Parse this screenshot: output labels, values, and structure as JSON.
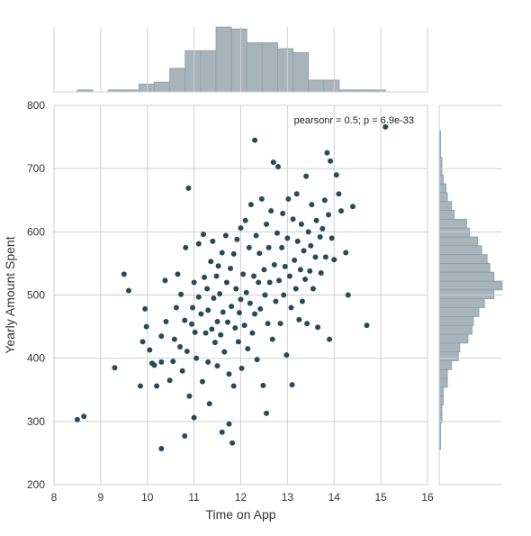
{
  "chart_data": {
    "type": "scatter",
    "title": "",
    "xlabel": "Time on App",
    "ylabel": "Yearly Amount Spent",
    "xlim": [
      8,
      16
    ],
    "ylim": [
      200,
      800
    ],
    "xticks": [
      "8",
      "9",
      "10",
      "11",
      "12",
      "13",
      "14",
      "15",
      "16"
    ],
    "yticks": [
      "200",
      "300",
      "400",
      "500",
      "600",
      "700",
      "800"
    ],
    "grid": true,
    "annotation": "pearsonr = 0.5; p = 6.9e-33",
    "colors": {
      "points": "#2a4a58",
      "hist_fill": "#a7b5bb",
      "hist_edge": "#8c9ca3",
      "grid": "#d0d0d0",
      "frame": "#cfcfcf"
    },
    "x_hist": {
      "bin_edges": [
        8.5,
        8.83,
        9.16,
        9.49,
        9.82,
        10.15,
        10.48,
        10.81,
        11.14,
        11.47,
        11.8,
        12.13,
        12.46,
        12.79,
        13.12,
        13.45,
        13.78,
        14.11,
        14.44,
        14.77,
        15.1
      ],
      "counts": [
        1,
        0,
        1,
        1,
        4,
        5,
        12,
        21,
        21,
        33,
        32,
        25,
        25,
        22,
        20,
        6,
        6,
        1,
        1,
        1
      ]
    },
    "y_hist": {
      "bin_edges": [
        256,
        270,
        284,
        298,
        312,
        326,
        340,
        354,
        368,
        382,
        396,
        410,
        424,
        438,
        452,
        466,
        480,
        494,
        508,
        522,
        536,
        550,
        564,
        578,
        592,
        606,
        620,
        634,
        648,
        662,
        676,
        690,
        704,
        718,
        732,
        746,
        760
      ],
      "counts": [
        1,
        1,
        1,
        2,
        2,
        3,
        3,
        6,
        6,
        9,
        14,
        15,
        21,
        24,
        25,
        29,
        33,
        40,
        46,
        40,
        37,
        35,
        31,
        28,
        22,
        20,
        11,
        9,
        6,
        5,
        3,
        2,
        2,
        1,
        1,
        1
      ]
    },
    "points": [
      {
        "x": 8.5,
        "y": 303
      },
      {
        "x": 8.64,
        "y": 308
      },
      {
        "x": 9.3,
        "y": 385
      },
      {
        "x": 9.5,
        "y": 533
      },
      {
        "x": 9.6,
        "y": 507
      },
      {
        "x": 9.85,
        "y": 356
      },
      {
        "x": 9.9,
        "y": 426
      },
      {
        "x": 9.95,
        "y": 478
      },
      {
        "x": 9.98,
        "y": 450
      },
      {
        "x": 10.05,
        "y": 413
      },
      {
        "x": 10.1,
        "y": 392
      },
      {
        "x": 10.15,
        "y": 389
      },
      {
        "x": 10.3,
        "y": 257
      },
      {
        "x": 10.3,
        "y": 435
      },
      {
        "x": 10.2,
        "y": 356
      },
      {
        "x": 10.3,
        "y": 394
      },
      {
        "x": 10.38,
        "y": 523
      },
      {
        "x": 10.4,
        "y": 458
      },
      {
        "x": 10.48,
        "y": 365
      },
      {
        "x": 10.55,
        "y": 395
      },
      {
        "x": 10.58,
        "y": 430
      },
      {
        "x": 10.62,
        "y": 480
      },
      {
        "x": 10.65,
        "y": 533
      },
      {
        "x": 10.7,
        "y": 418
      },
      {
        "x": 10.72,
        "y": 501
      },
      {
        "x": 10.75,
        "y": 380
      },
      {
        "x": 10.8,
        "y": 277
      },
      {
        "x": 10.8,
        "y": 460
      },
      {
        "x": 10.82,
        "y": 575
      },
      {
        "x": 10.85,
        "y": 411
      },
      {
        "x": 10.88,
        "y": 669
      },
      {
        "x": 10.9,
        "y": 340
      },
      {
        "x": 10.95,
        "y": 454
      },
      {
        "x": 10.97,
        "y": 480
      },
      {
        "x": 11.0,
        "y": 306
      },
      {
        "x": 11.0,
        "y": 520
      },
      {
        "x": 11.02,
        "y": 441
      },
      {
        "x": 11.05,
        "y": 400
      },
      {
        "x": 11.1,
        "y": 581
      },
      {
        "x": 11.1,
        "y": 497
      },
      {
        "x": 11.15,
        "y": 470
      },
      {
        "x": 11.18,
        "y": 363
      },
      {
        "x": 11.2,
        "y": 596
      },
      {
        "x": 11.22,
        "y": 528
      },
      {
        "x": 11.25,
        "y": 440
      },
      {
        "x": 11.28,
        "y": 510
      },
      {
        "x": 11.3,
        "y": 394
      },
      {
        "x": 11.3,
        "y": 476
      },
      {
        "x": 11.33,
        "y": 328
      },
      {
        "x": 11.36,
        "y": 553
      },
      {
        "x": 11.38,
        "y": 446
      },
      {
        "x": 11.4,
        "y": 585
      },
      {
        "x": 11.42,
        "y": 495
      },
      {
        "x": 11.45,
        "y": 425
      },
      {
        "x": 11.48,
        "y": 530
      },
      {
        "x": 11.5,
        "y": 458
      },
      {
        "x": 11.5,
        "y": 388
      },
      {
        "x": 11.52,
        "y": 546
      },
      {
        "x": 11.55,
        "y": 502
      },
      {
        "x": 11.57,
        "y": 437
      },
      {
        "x": 11.6,
        "y": 567
      },
      {
        "x": 11.6,
        "y": 283
      },
      {
        "x": 11.62,
        "y": 473
      },
      {
        "x": 11.65,
        "y": 410
      },
      {
        "x": 11.68,
        "y": 594
      },
      {
        "x": 11.7,
        "y": 520
      },
      {
        "x": 11.72,
        "y": 457
      },
      {
        "x": 11.75,
        "y": 296
      },
      {
        "x": 11.75,
        "y": 375
      },
      {
        "x": 11.78,
        "y": 542
      },
      {
        "x": 11.8,
        "y": 482
      },
      {
        "x": 11.82,
        "y": 266
      },
      {
        "x": 11.85,
        "y": 356
      },
      {
        "x": 11.85,
        "y": 565
      },
      {
        "x": 11.88,
        "y": 448
      },
      {
        "x": 11.9,
        "y": 510
      },
      {
        "x": 11.92,
        "y": 588
      },
      {
        "x": 11.95,
        "y": 426
      },
      {
        "x": 11.97,
        "y": 472
      },
      {
        "x": 12.0,
        "y": 606
      },
      {
        "x": 12.0,
        "y": 493
      },
      {
        "x": 12.02,
        "y": 384
      },
      {
        "x": 12.05,
        "y": 533
      },
      {
        "x": 12.08,
        "y": 452
      },
      {
        "x": 12.1,
        "y": 618
      },
      {
        "x": 12.12,
        "y": 504
      },
      {
        "x": 12.15,
        "y": 415
      },
      {
        "x": 12.18,
        "y": 575
      },
      {
        "x": 12.2,
        "y": 487
      },
      {
        "x": 12.22,
        "y": 643
      },
      {
        "x": 12.25,
        "y": 440
      },
      {
        "x": 12.28,
        "y": 530
      },
      {
        "x": 12.3,
        "y": 745
      },
      {
        "x": 12.3,
        "y": 470
      },
      {
        "x": 12.33,
        "y": 594
      },
      {
        "x": 12.35,
        "y": 398
      },
      {
        "x": 12.38,
        "y": 520
      },
      {
        "x": 12.4,
        "y": 566
      },
      {
        "x": 12.42,
        "y": 478
      },
      {
        "x": 12.45,
        "y": 652
      },
      {
        "x": 12.48,
        "y": 357
      },
      {
        "x": 12.5,
        "y": 540
      },
      {
        "x": 12.52,
        "y": 500
      },
      {
        "x": 12.55,
        "y": 313
      },
      {
        "x": 12.55,
        "y": 612
      },
      {
        "x": 12.58,
        "y": 455
      },
      {
        "x": 12.6,
        "y": 575
      },
      {
        "x": 12.62,
        "y": 520
      },
      {
        "x": 12.65,
        "y": 633
      },
      {
        "x": 12.68,
        "y": 430
      },
      {
        "x": 12.7,
        "y": 710
      },
      {
        "x": 12.72,
        "y": 548
      },
      {
        "x": 12.75,
        "y": 490
      },
      {
        "x": 12.78,
        "y": 598
      },
      {
        "x": 12.8,
        "y": 703
      },
      {
        "x": 12.82,
        "y": 523
      },
      {
        "x": 12.85,
        "y": 455
      },
      {
        "x": 12.88,
        "y": 575
      },
      {
        "x": 12.9,
        "y": 629
      },
      {
        "x": 12.92,
        "y": 500
      },
      {
        "x": 12.95,
        "y": 545
      },
      {
        "x": 12.98,
        "y": 405
      },
      {
        "x": 13.0,
        "y": 590
      },
      {
        "x": 13.02,
        "y": 652
      },
      {
        "x": 13.05,
        "y": 530
      },
      {
        "x": 13.08,
        "y": 480
      },
      {
        "x": 13.1,
        "y": 358
      },
      {
        "x": 13.12,
        "y": 620
      },
      {
        "x": 13.15,
        "y": 555
      },
      {
        "x": 13.18,
        "y": 510
      },
      {
        "x": 13.2,
        "y": 660
      },
      {
        "x": 13.22,
        "y": 585
      },
      {
        "x": 13.25,
        "y": 461
      },
      {
        "x": 13.28,
        "y": 540
      },
      {
        "x": 13.3,
        "y": 612
      },
      {
        "x": 13.32,
        "y": 490
      },
      {
        "x": 13.35,
        "y": 570
      },
      {
        "x": 13.38,
        "y": 525
      },
      {
        "x": 13.4,
        "y": 688
      },
      {
        "x": 13.42,
        "y": 455
      },
      {
        "x": 13.45,
        "y": 600
      },
      {
        "x": 13.48,
        "y": 538
      },
      {
        "x": 13.5,
        "y": 578
      },
      {
        "x": 13.52,
        "y": 643
      },
      {
        "x": 13.55,
        "y": 510
      },
      {
        "x": 13.6,
        "y": 560
      },
      {
        "x": 13.62,
        "y": 618
      },
      {
        "x": 13.65,
        "y": 449
      },
      {
        "x": 13.7,
        "y": 592
      },
      {
        "x": 13.72,
        "y": 535
      },
      {
        "x": 13.75,
        "y": 605
      },
      {
        "x": 13.8,
        "y": 650
      },
      {
        "x": 13.82,
        "y": 560
      },
      {
        "x": 13.85,
        "y": 725
      },
      {
        "x": 13.88,
        "y": 627
      },
      {
        "x": 13.9,
        "y": 430
      },
      {
        "x": 13.92,
        "y": 712
      },
      {
        "x": 13.95,
        "y": 590
      },
      {
        "x": 14.0,
        "y": 556
      },
      {
        "x": 14.05,
        "y": 690
      },
      {
        "x": 14.1,
        "y": 660
      },
      {
        "x": 14.15,
        "y": 633
      },
      {
        "x": 14.25,
        "y": 567
      },
      {
        "x": 14.3,
        "y": 500
      },
      {
        "x": 14.4,
        "y": 640
      },
      {
        "x": 14.7,
        "y": 452
      },
      {
        "x": 15.1,
        "y": 766
      }
    ]
  }
}
